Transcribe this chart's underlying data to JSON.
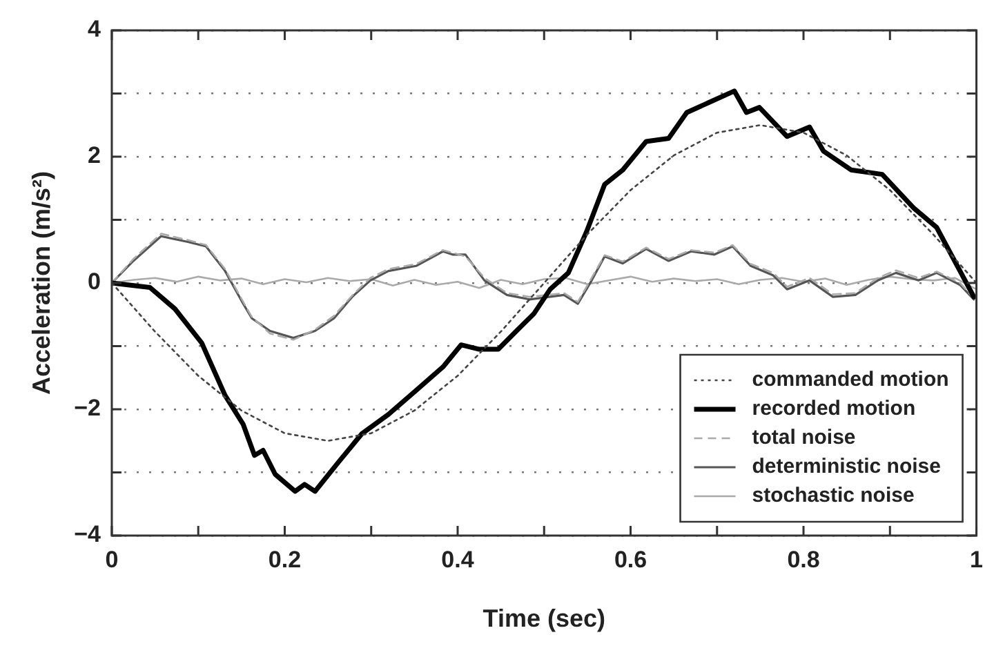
{
  "chart_data": {
    "type": "line",
    "xlabel": "Time (sec)",
    "ylabel": "Acceleration (m/s²)",
    "xlim": [
      0,
      1
    ],
    "ylim": [
      -4,
      4
    ],
    "xticks": [
      0,
      {
        "value": 0.1,
        "label": null
      },
      {
        "value": 0.2,
        "label": "0.2"
      },
      {
        "value": 0.3,
        "label": null
      },
      {
        "value": 0.4,
        "label": "0.4"
      },
      {
        "value": 0.5,
        "label": null
      },
      {
        "value": 0.6,
        "label": "0.6"
      },
      {
        "value": 0.7,
        "label": null
      },
      {
        "value": 0.8,
        "label": "0.8"
      },
      {
        "value": 0.9,
        "label": null
      },
      1
    ],
    "yticks": [
      {
        "value": -4,
        "label": "−4"
      },
      {
        "value": -3,
        "label": null
      },
      {
        "value": -2,
        "label": "−2"
      },
      {
        "value": -1,
        "label": null
      },
      0,
      {
        "value": 1,
        "label": null
      },
      2,
      {
        "value": 3,
        "label": null
      },
      4
    ],
    "grid": "y",
    "legend": "bottom right",
    "marker": "none",
    "series": [
      {
        "name": "commanded motion",
        "color": "#444444",
        "line_style": "dotted",
        "x": [
          0,
          0.05,
          0.1,
          0.15,
          0.2,
          0.25,
          0.3,
          0.35,
          0.4,
          0.45,
          0.5,
          0.55,
          0.6,
          0.65,
          0.7,
          0.75,
          0.8,
          0.85,
          0.9,
          0.95,
          1
        ],
        "values": [
          0,
          -0.77,
          -1.47,
          -2.02,
          -2.38,
          -2.5,
          -2.38,
          -2.02,
          -1.47,
          -0.77,
          0,
          0.77,
          1.47,
          2.02,
          2.38,
          2.5,
          2.38,
          2.02,
          1.47,
          0.77,
          0
        ]
      },
      {
        "name": "recorded motion",
        "color": "#000000",
        "line_style": "solid",
        "x": [
          0,
          0.044,
          0.073,
          0.104,
          0.131,
          0.152,
          0.165,
          0.175,
          0.189,
          0.212,
          0.223,
          0.235,
          0.262,
          0.289,
          0.32,
          0.352,
          0.383,
          0.404,
          0.425,
          0.447,
          0.468,
          0.488,
          0.507,
          0.528,
          0.549,
          0.57,
          0.591,
          0.618,
          0.644,
          0.665,
          0.691,
          0.72,
          0.734,
          0.749,
          0.781,
          0.807,
          0.823,
          0.855,
          0.891,
          0.928,
          0.954,
          0.981,
          0.997
        ],
        "values": [
          0,
          -0.07,
          -0.41,
          -0.95,
          -1.78,
          -2.24,
          -2.73,
          -2.65,
          -3.03,
          -3.3,
          -3.19,
          -3.3,
          -2.84,
          -2.39,
          -2.08,
          -1.7,
          -1.33,
          -0.98,
          -1.05,
          -1.05,
          -0.76,
          -0.49,
          -0.1,
          0.16,
          0.81,
          1.56,
          1.79,
          2.24,
          2.29,
          2.7,
          2.86,
          3.04,
          2.7,
          2.78,
          2.32,
          2.47,
          2.09,
          1.79,
          1.72,
          1.18,
          0.88,
          0.19,
          -0.22
        ]
      },
      {
        "name": "total noise",
        "color": "#aaaaaa",
        "line_style": "dashed",
        "x": [
          0,
          0.025,
          0.057,
          0.088,
          0.109,
          0.131,
          0.152,
          0.162,
          0.183,
          0.21,
          0.235,
          0.257,
          0.278,
          0.299,
          0.32,
          0.352,
          0.383,
          0.394,
          0.409,
          0.431,
          0.457,
          0.483,
          0.523,
          0.539,
          0.555,
          0.57,
          0.591,
          0.618,
          0.644,
          0.67,
          0.697,
          0.718,
          0.739,
          0.765,
          0.781,
          0.807,
          0.834,
          0.86,
          0.886,
          0.907,
          0.933,
          0.954,
          0.981,
          0.997
        ],
        "values": [
          0,
          0.38,
          0.78,
          0.68,
          0.6,
          0.22,
          -0.3,
          -0.54,
          -0.8,
          -0.9,
          -0.74,
          -0.52,
          -0.2,
          0.08,
          0.22,
          0.3,
          0.52,
          0.48,
          0.42,
          0.08,
          -0.16,
          -0.22,
          -0.16,
          -0.3,
          0.08,
          0.44,
          0.34,
          0.56,
          0.38,
          0.52,
          0.48,
          0.6,
          0.3,
          0.16,
          -0.06,
          0.08,
          -0.18,
          -0.16,
          0.08,
          0.2,
          0.08,
          0.18,
          0,
          -0.24
        ]
      },
      {
        "name": "deterministic noise",
        "color": "#555555",
        "line_style": "solid",
        "x": [
          0,
          0.025,
          0.057,
          0.088,
          0.109,
          0.131,
          0.152,
          0.162,
          0.183,
          0.21,
          0.235,
          0.257,
          0.278,
          0.299,
          0.32,
          0.352,
          0.383,
          0.394,
          0.409,
          0.431,
          0.457,
          0.483,
          0.523,
          0.539,
          0.555,
          0.57,
          0.591,
          0.618,
          0.644,
          0.67,
          0.697,
          0.718,
          0.739,
          0.765,
          0.781,
          0.807,
          0.834,
          0.86,
          0.886,
          0.907,
          0.933,
          0.954,
          0.981,
          0.997
        ],
        "values": [
          0,
          0.35,
          0.74,
          0.65,
          0.58,
          0.19,
          -0.33,
          -0.56,
          -0.76,
          -0.87,
          -0.76,
          -0.56,
          -0.22,
          0.04,
          0.19,
          0.27,
          0.5,
          0.45,
          0.45,
          0.04,
          -0.19,
          -0.26,
          -0.19,
          -0.33,
          0.04,
          0.42,
          0.31,
          0.54,
          0.35,
          0.5,
          0.45,
          0.58,
          0.27,
          0.12,
          -0.1,
          0.04,
          -0.22,
          -0.19,
          0.04,
          0.16,
          0.04,
          0.16,
          -0.03,
          -0.26
        ]
      },
      {
        "name": "stochastic noise",
        "color": "#aaaaaa",
        "line_style": "solid",
        "x": [
          0,
          0.025,
          0.05,
          0.075,
          0.1,
          0.125,
          0.15,
          0.175,
          0.2,
          0.225,
          0.25,
          0.275,
          0.3,
          0.325,
          0.35,
          0.375,
          0.4,
          0.425,
          0.45,
          0.475,
          0.5,
          0.525,
          0.55,
          0.575,
          0.6,
          0.625,
          0.65,
          0.675,
          0.7,
          0.725,
          0.75,
          0.775,
          0.8,
          0.825,
          0.85,
          0.875,
          0.9,
          0.925,
          0.95,
          0.975,
          1
        ],
        "values": [
          0,
          0.05,
          0.08,
          0.02,
          0.1,
          0.04,
          0.07,
          -0.02,
          0.06,
          0.01,
          0.08,
          0.03,
          0.06,
          -0.04,
          0.05,
          -0.03,
          0.02,
          -0.08,
          0.05,
          -0.02,
          0.06,
          0.08,
          -0.02,
          0.04,
          0.1,
          0.02,
          0.07,
          0.03,
          0.06,
          -0.02,
          0.05,
          0.08,
          0.02,
          0.07,
          -0.03,
          0.05,
          0.1,
          0.06,
          0.04,
          0.08,
          -0.1
        ]
      }
    ]
  }
}
